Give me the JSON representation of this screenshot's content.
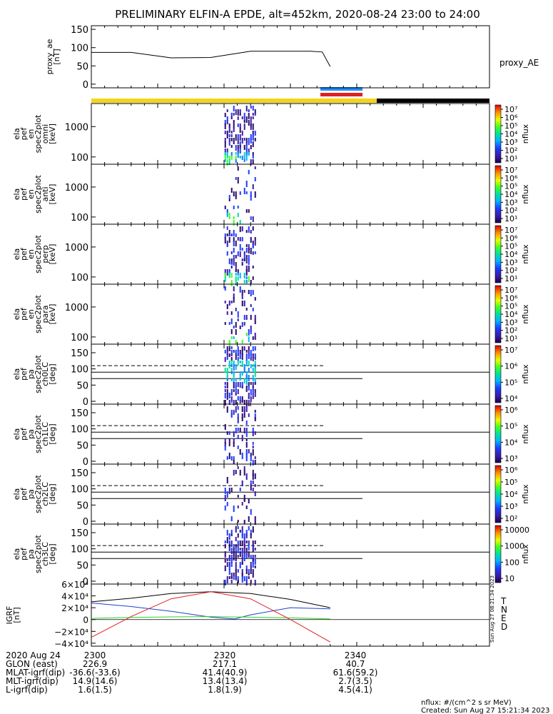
{
  "title": "PRELIMINARY ELFIN-A EPDE, alt=452km, 2020-08-24 23:00 to 24:00",
  "time_range_minutes": [
    2300,
    2400
  ],
  "panels": [
    {
      "id": "proxy_ae",
      "ylabel": [
        "proxy_ae",
        "[nT]"
      ],
      "series_label": "proxy_AE",
      "yticks": [
        "150",
        "100",
        "50",
        "0"
      ],
      "ylim": [
        -10,
        160
      ]
    },
    {
      "id": "en_omni",
      "ylabel": [
        "ela",
        "pef",
        "en",
        "spec2plot",
        "omni",
        "[keV]"
      ],
      "yticks": [
        "1000",
        "100"
      ],
      "colorbar_ticks": [
        "10⁷",
        "10⁶",
        "10⁵",
        "10⁴",
        "10³",
        "10²",
        "10¹"
      ],
      "colorbar_label": "nflux"
    },
    {
      "id": "en_anti",
      "ylabel": [
        "ela",
        "pef",
        "en",
        "spec2plot",
        "anti",
        "[keV]"
      ],
      "yticks": [
        "1000",
        "100"
      ],
      "colorbar_ticks": [
        "10⁷",
        "10⁶",
        "10⁵",
        "10⁴",
        "10³",
        "10²",
        "10¹"
      ],
      "colorbar_label": "nflux"
    },
    {
      "id": "en_perp",
      "ylabel": [
        "ela",
        "pef",
        "en",
        "spec2plot",
        "perp",
        "[keV]"
      ],
      "yticks": [
        "1000",
        "100"
      ],
      "colorbar_ticks": [
        "10⁷",
        "10⁶",
        "10⁵",
        "10⁴",
        "10³",
        "10²",
        "10¹"
      ],
      "colorbar_label": "nflux"
    },
    {
      "id": "en_para",
      "ylabel": [
        "ela",
        "pef",
        "en",
        "spec2plot",
        "para",
        "[keV]"
      ],
      "yticks": [
        "1000",
        "100"
      ],
      "colorbar_ticks": [
        "10⁷",
        "10⁶",
        "10⁵",
        "10⁴",
        "10³",
        "10²",
        "10¹"
      ],
      "colorbar_label": "nflux"
    },
    {
      "id": "pa_ch0",
      "ylabel": [
        "ela",
        "pef",
        "pa",
        "spec2plot",
        "ch0LC",
        "[deg]"
      ],
      "yticks": [
        "150",
        "100",
        "50",
        "0"
      ],
      "colorbar_ticks": [
        "10⁷",
        "10⁶",
        "10⁵",
        "10⁴"
      ],
      "colorbar_label": "nflux"
    },
    {
      "id": "pa_ch1",
      "ylabel": [
        "ela",
        "pef",
        "pa",
        "spec2plot",
        "ch1LC",
        "[deg]"
      ],
      "yticks": [
        "150",
        "100",
        "50",
        "0"
      ],
      "colorbar_ticks": [
        "10⁶",
        "10⁵",
        "10⁴",
        "10³"
      ],
      "colorbar_label": "nflux"
    },
    {
      "id": "pa_ch2",
      "ylabel": [
        "ela",
        "pef",
        "pa",
        "spec2plot",
        "ch2LC",
        "[deg]"
      ],
      "yticks": [
        "150",
        "100",
        "50",
        "0"
      ],
      "colorbar_ticks": [
        "10⁶",
        "10⁵",
        "10⁴",
        "10³",
        "10²"
      ],
      "colorbar_label": "nflux"
    },
    {
      "id": "pa_ch3",
      "ylabel": [
        "ela",
        "pef",
        "pa",
        "spec2plot",
        "ch3LC",
        "[deg]"
      ],
      "yticks": [
        "150",
        "100",
        "50",
        "0"
      ],
      "colorbar_ticks": [
        "10000",
        "1000",
        "100",
        "10"
      ],
      "colorbar_label": "nflux"
    },
    {
      "id": "igrf",
      "ylabel": [
        "IGRF",
        "[nT]"
      ],
      "yticks": [
        "6×10⁴",
        "4×10⁴",
        "2×10⁴",
        "0",
        "−2×10⁴",
        "−4×10⁴"
      ],
      "ylim": [
        -45000,
        60000
      ],
      "legend": [
        {
          "label": "T",
          "color": "#000000"
        },
        {
          "label": "N",
          "color": "#1f3fd0"
        },
        {
          "label": "E",
          "color": "#2bd42b"
        },
        {
          "label": "D",
          "color": "#e02020"
        }
      ],
      "side_label": "Sun Aug 27 08:21:34 2023"
    }
  ],
  "chart_data": {
    "type": "line",
    "title": "PRELIMINARY ELFIN-A EPDE, alt=452km, 2020-08-24 23:00 to 24:00",
    "x_unit": "HHMM UT",
    "xlim": [
      2300,
      2400
    ],
    "proxy_ae": {
      "x": [
        2300,
        2310,
        2320,
        2330,
        2340,
        2355,
        2358,
        2360
      ],
      "y": [
        87,
        87,
        72,
        73,
        90,
        90,
        88,
        48
      ]
    },
    "igrf_series": [
      {
        "name": "T",
        "x": [
          2300,
          2310,
          2320,
          2330,
          2340,
          2350,
          2360
        ],
        "y": [
          30000,
          36000,
          44000,
          47000,
          44000,
          34000,
          20000
        ]
      },
      {
        "name": "N",
        "x": [
          2300,
          2310,
          2320,
          2330,
          2336,
          2340,
          2350,
          2360
        ],
        "y": [
          28000,
          22000,
          14000,
          4000,
          1000,
          8000,
          20000,
          18000
        ]
      },
      {
        "name": "E",
        "x": [
          2300,
          2310,
          2320,
          2330,
          2340,
          2350,
          2360
        ],
        "y": [
          2000,
          3500,
          4500,
          5000,
          4000,
          3000,
          1000
        ]
      },
      {
        "name": "D",
        "x": [
          2300,
          2310,
          2320,
          2330,
          2340,
          2350,
          2360
        ],
        "y": [
          -30000,
          5000,
          35000,
          47000,
          35000,
          0,
          -38000
        ]
      }
    ],
    "science_zone_minutes": [
      2334,
      2341
    ],
    "status_bar": [
      {
        "from": 2300,
        "to": 2342,
        "color": "#f2d51a"
      },
      {
        "from": 2342,
        "to": 2360,
        "color": "#000000"
      }
    ]
  },
  "footer_rows": [
    {
      "label": "2020 Aug 24",
      "values": [
        "2300",
        "",
        "2320",
        "",
        "2340"
      ]
    },
    {
      "label": "GLON (east)",
      "values": [
        "226.9",
        "",
        "217.1",
        "",
        "40.7"
      ]
    },
    {
      "label": "MLAT-igrf(dip)",
      "values": [
        "-36.6(-33.6)",
        "",
        "41.4(40.9)",
        "",
        "61.6(59.2)"
      ]
    },
    {
      "label": "MLT-igrf(dip)",
      "values": [
        "14.9(14.6)",
        "",
        "13.4(13.4)",
        "",
        "2.7(3.5)"
      ]
    },
    {
      "label": "L-igrf(dip)",
      "values": [
        "1.6(1.5)",
        "",
        "1.8(1.9)",
        "",
        "4.5(4.1)"
      ]
    }
  ],
  "footnote_units": "nflux: #/(cm^2 s sr MeV)",
  "footnote_created": "Created: Sun Aug 27 15:21:34 2023"
}
